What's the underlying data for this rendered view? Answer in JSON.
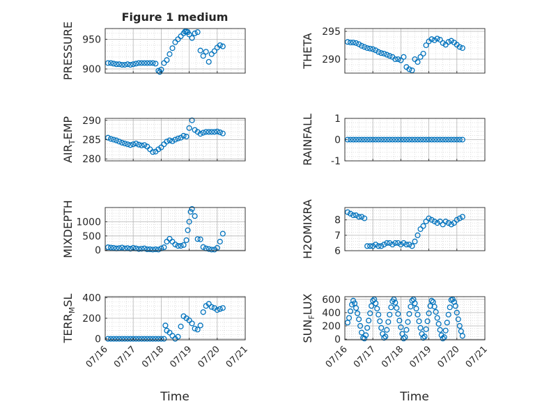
{
  "figure": {
    "title": "Figure 1 medium",
    "xlabel": "Time"
  },
  "colors": {
    "marker": "#0072BD",
    "axis": "#262626",
    "grid": "#c8c8c8",
    "background": "#ffffff"
  },
  "x_ticks": [
    "07/16",
    "07/17",
    "07/18",
    "07/19",
    "07/20",
    "07/21"
  ],
  "chart_data": [
    {
      "type": "scatter",
      "ylabel": "PRESSURE",
      "ylim": [
        893,
        968
      ],
      "yticks": [
        900,
        950
      ],
      "grid": true,
      "x_range_days": [
        0,
        5
      ],
      "x": [
        0.1,
        0.2,
        0.3,
        0.4,
        0.5,
        0.6,
        0.7,
        0.8,
        0.9,
        1.0,
        1.1,
        1.2,
        1.3,
        1.4,
        1.5,
        1.6,
        1.7,
        1.8,
        1.9,
        1.95,
        2.0,
        2.1,
        2.2,
        2.3,
        2.4,
        2.5,
        2.6,
        2.7,
        2.8,
        2.85,
        2.9,
        2.95,
        3.0,
        3.1,
        3.2,
        3.3,
        3.4,
        3.5,
        3.6,
        3.7,
        3.8,
        3.9,
        4.0,
        4.1,
        4.2
      ],
      "y": [
        910,
        910,
        909,
        908,
        908,
        907,
        907,
        908,
        907,
        908,
        909,
        910,
        910,
        910,
        910,
        910,
        910,
        909,
        897,
        895,
        899,
        910,
        915,
        925,
        935,
        945,
        950,
        955,
        960,
        963,
        963,
        962,
        958,
        952,
        960,
        962,
        931,
        922,
        929,
        912,
        925,
        930,
        936,
        940,
        938
      ]
    },
    {
      "type": "scatter",
      "ylabel": "THETA",
      "ylim": [
        287.5,
        295.5
      ],
      "yticks": [
        290,
        295
      ],
      "grid": true,
      "x_range_days": [
        0,
        5
      ],
      "x": [
        0.1,
        0.2,
        0.3,
        0.4,
        0.5,
        0.6,
        0.7,
        0.8,
        0.9,
        1.0,
        1.1,
        1.2,
        1.3,
        1.4,
        1.5,
        1.6,
        1.7,
        1.8,
        1.9,
        2.0,
        2.1,
        2.2,
        2.3,
        2.4,
        2.5,
        2.6,
        2.7,
        2.8,
        2.9,
        3.0,
        3.1,
        3.2,
        3.3,
        3.4,
        3.5,
        3.6,
        3.7,
        3.8,
        3.9,
        4.0,
        4.1,
        4.2
      ],
      "y": [
        293.1,
        293.0,
        293.0,
        292.9,
        292.7,
        292.4,
        292.2,
        292.0,
        291.9,
        291.8,
        291.6,
        291.3,
        291.1,
        291.0,
        290.8,
        290.6,
        290.4,
        290.0,
        290.0,
        289.8,
        290.4,
        288.6,
        288.2,
        288.0,
        290.0,
        289.5,
        290.4,
        291.0,
        292.5,
        293.2,
        293.6,
        293.4,
        293.7,
        293.5,
        292.9,
        292.6,
        293.1,
        293.3,
        293.0,
        292.6,
        292.2,
        292.0
      ]
    },
    {
      "type": "scatter",
      "ylabel": "AIR_TEMP",
      "ylim": [
        279.5,
        290.5
      ],
      "yticks": [
        280,
        285,
        290
      ],
      "grid": true,
      "x_range_days": [
        0,
        5
      ],
      "x": [
        0.1,
        0.2,
        0.3,
        0.4,
        0.5,
        0.6,
        0.7,
        0.8,
        0.9,
        1.0,
        1.1,
        1.2,
        1.3,
        1.4,
        1.5,
        1.6,
        1.7,
        1.8,
        1.9,
        2.0,
        2.1,
        2.2,
        2.3,
        2.4,
        2.5,
        2.6,
        2.7,
        2.8,
        2.9,
        3.0,
        3.1,
        3.2,
        3.3,
        3.4,
        3.5,
        3.6,
        3.7,
        3.8,
        3.9,
        4.0,
        4.1,
        4.2
      ],
      "y": [
        285.5,
        285.2,
        285.0,
        284.8,
        284.5,
        284.2,
        284.0,
        283.8,
        283.6,
        283.8,
        284.0,
        283.7,
        283.5,
        283.6,
        283.2,
        282.5,
        281.8,
        281.9,
        282.5,
        283.0,
        283.8,
        284.5,
        284.8,
        284.6,
        285.0,
        285.3,
        285.5,
        286.0,
        285.8,
        288.0,
        290.0,
        287.5,
        287.0,
        286.5,
        286.8,
        287.0,
        287.0,
        287.0,
        287.0,
        287.1,
        286.9,
        286.6
      ]
    },
    {
      "type": "scatter",
      "ylabel": "RAINFALL",
      "ylim": [
        -1,
        1
      ],
      "yticks": [
        -1,
        0,
        1
      ],
      "grid": true,
      "x_range_days": [
        0,
        5
      ],
      "x": [
        0.1,
        0.2,
        0.3,
        0.4,
        0.5,
        0.6,
        0.7,
        0.8,
        0.9,
        1.0,
        1.1,
        1.2,
        1.3,
        1.4,
        1.5,
        1.6,
        1.7,
        1.8,
        1.9,
        2.0,
        2.1,
        2.2,
        2.3,
        2.4,
        2.5,
        2.6,
        2.7,
        2.8,
        2.9,
        3.0,
        3.1,
        3.2,
        3.3,
        3.4,
        3.5,
        3.6,
        3.7,
        3.8,
        3.9,
        4.0,
        4.1,
        4.2
      ],
      "y": [
        0,
        0,
        0,
        0,
        0,
        0,
        0,
        0,
        0,
        0,
        0,
        0,
        0,
        0,
        0,
        0,
        0,
        0,
        0,
        0,
        0,
        0,
        0,
        0,
        0,
        0,
        0,
        0,
        0,
        0,
        0,
        0,
        0,
        0,
        0,
        0,
        0,
        0,
        0,
        0,
        0,
        0
      ]
    },
    {
      "type": "scatter",
      "ylabel": "MIXDEPTH",
      "ylim": [
        -20,
        1500
      ],
      "yticks": [
        0,
        500,
        1000
      ],
      "grid": true,
      "x_range_days": [
        0,
        5
      ],
      "x": [
        0.1,
        0.2,
        0.3,
        0.4,
        0.5,
        0.6,
        0.7,
        0.8,
        0.9,
        1.0,
        1.1,
        1.2,
        1.3,
        1.4,
        1.5,
        1.6,
        1.7,
        1.8,
        1.9,
        2.0,
        2.1,
        2.2,
        2.3,
        2.4,
        2.5,
        2.6,
        2.7,
        2.8,
        2.9,
        2.95,
        3.0,
        3.05,
        3.1,
        3.2,
        3.3,
        3.4,
        3.5,
        3.6,
        3.7,
        3.8,
        3.9,
        4.0,
        4.1,
        4.2
      ],
      "y": [
        100,
        90,
        80,
        60,
        70,
        90,
        60,
        70,
        50,
        80,
        60,
        40,
        50,
        60,
        30,
        30,
        20,
        30,
        20,
        60,
        100,
        300,
        400,
        300,
        200,
        150,
        150,
        180,
        350,
        700,
        1000,
        1350,
        1450,
        1200,
        390,
        380,
        110,
        60,
        40,
        20,
        20,
        80,
        300,
        580
      ]
    },
    {
      "type": "scatter",
      "ylabel": "H2OMIXRA",
      "ylim": [
        6.0,
        8.8
      ],
      "yticks": [
        6,
        7,
        8
      ],
      "grid": true,
      "x_range_days": [
        0,
        5
      ],
      "x": [
        0.1,
        0.2,
        0.3,
        0.4,
        0.5,
        0.6,
        0.7,
        0.8,
        0.9,
        1.0,
        1.1,
        1.2,
        1.3,
        1.4,
        1.5,
        1.6,
        1.7,
        1.8,
        1.9,
        2.0,
        2.1,
        2.2,
        2.3,
        2.4,
        2.5,
        2.6,
        2.7,
        2.8,
        2.9,
        3.0,
        3.1,
        3.2,
        3.3,
        3.4,
        3.5,
        3.6,
        3.7,
        3.8,
        3.9,
        4.0,
        4.1,
        4.2
      ],
      "y": [
        8.5,
        8.4,
        8.3,
        8.3,
        8.2,
        8.2,
        8.1,
        6.3,
        6.3,
        6.3,
        6.4,
        6.3,
        6.3,
        6.4,
        6.5,
        6.5,
        6.4,
        6.5,
        6.5,
        6.4,
        6.5,
        6.4,
        6.4,
        6.3,
        6.6,
        7.0,
        7.4,
        7.6,
        7.9,
        8.1,
        8.0,
        7.9,
        7.8,
        7.9,
        7.7,
        7.9,
        7.8,
        7.7,
        7.8,
        8.0,
        8.1,
        8.2
      ]
    },
    {
      "type": "scatter",
      "ylabel": "TERR_MSL",
      "ylim": [
        -10,
        410
      ],
      "yticks": [
        0,
        200,
        400
      ],
      "grid": true,
      "x_range_days": [
        0,
        5
      ],
      "x": [
        0.1,
        0.2,
        0.3,
        0.4,
        0.5,
        0.6,
        0.7,
        0.8,
        0.9,
        1.0,
        1.1,
        1.2,
        1.3,
        1.4,
        1.5,
        1.6,
        1.7,
        1.8,
        1.9,
        2.0,
        2.1,
        2.15,
        2.2,
        2.3,
        2.4,
        2.5,
        2.6,
        2.7,
        2.8,
        2.9,
        3.0,
        3.1,
        3.2,
        3.3,
        3.4,
        3.5,
        3.6,
        3.7,
        3.8,
        3.9,
        4.0,
        4.1,
        4.2
      ],
      "y": [
        0,
        0,
        0,
        0,
        0,
        0,
        0,
        0,
        0,
        0,
        0,
        0,
        0,
        0,
        0,
        0,
        0,
        0,
        0,
        0,
        0,
        130,
        80,
        60,
        30,
        0,
        20,
        120,
        220,
        200,
        180,
        150,
        100,
        90,
        130,
        260,
        320,
        340,
        310,
        300,
        280,
        290,
        300
      ]
    },
    {
      "type": "scatter",
      "ylabel": "SUN_FLUX",
      "ylim": [
        -10,
        640
      ],
      "yticks": [
        0,
        200,
        400,
        600
      ],
      "grid": true,
      "x_range_days": [
        0,
        5
      ],
      "x": [
        0.1,
        0.15,
        0.2,
        0.25,
        0.3,
        0.35,
        0.4,
        0.45,
        0.5,
        0.55,
        0.6,
        0.65,
        0.7,
        0.75,
        0.8,
        0.85,
        0.9,
        0.95,
        1.0,
        1.05,
        1.1,
        1.15,
        1.2,
        1.25,
        1.3,
        1.35,
        1.4,
        1.45,
        1.5,
        1.55,
        1.6,
        1.65,
        1.7,
        1.75,
        1.8,
        1.85,
        1.9,
        1.95,
        2.0,
        2.05,
        2.1,
        2.15,
        2.2,
        2.25,
        2.3,
        2.35,
        2.4,
        2.45,
        2.5,
        2.55,
        2.6,
        2.65,
        2.7,
        2.75,
        2.8,
        2.85,
        2.9,
        2.95,
        3.0,
        3.05,
        3.1,
        3.15,
        3.2,
        3.25,
        3.3,
        3.35,
        3.4,
        3.45,
        3.5,
        3.55,
        3.6,
        3.65,
        3.7,
        3.75,
        3.8,
        3.85,
        3.9,
        3.95,
        4.0,
        4.05,
        4.1,
        4.15,
        4.2
      ],
      "y": [
        250,
        320,
        420,
        520,
        580,
        540,
        470,
        390,
        300,
        200,
        100,
        20,
        10,
        60,
        170,
        280,
        390,
        500,
        580,
        600,
        540,
        460,
        370,
        270,
        170,
        80,
        20,
        40,
        140,
        260,
        370,
        480,
        570,
        600,
        550,
        470,
        380,
        280,
        180,
        80,
        10,
        30,
        140,
        260,
        380,
        490,
        580,
        600,
        540,
        460,
        370,
        270,
        170,
        80,
        20,
        40,
        150,
        270,
        390,
        500,
        580,
        560,
        490,
        410,
        320,
        230,
        140,
        60,
        10,
        30,
        130,
        250,
        370,
        480,
        590,
        600,
        560,
        500,
        400,
        300,
        200,
        120,
        50
      ]
    }
  ]
}
